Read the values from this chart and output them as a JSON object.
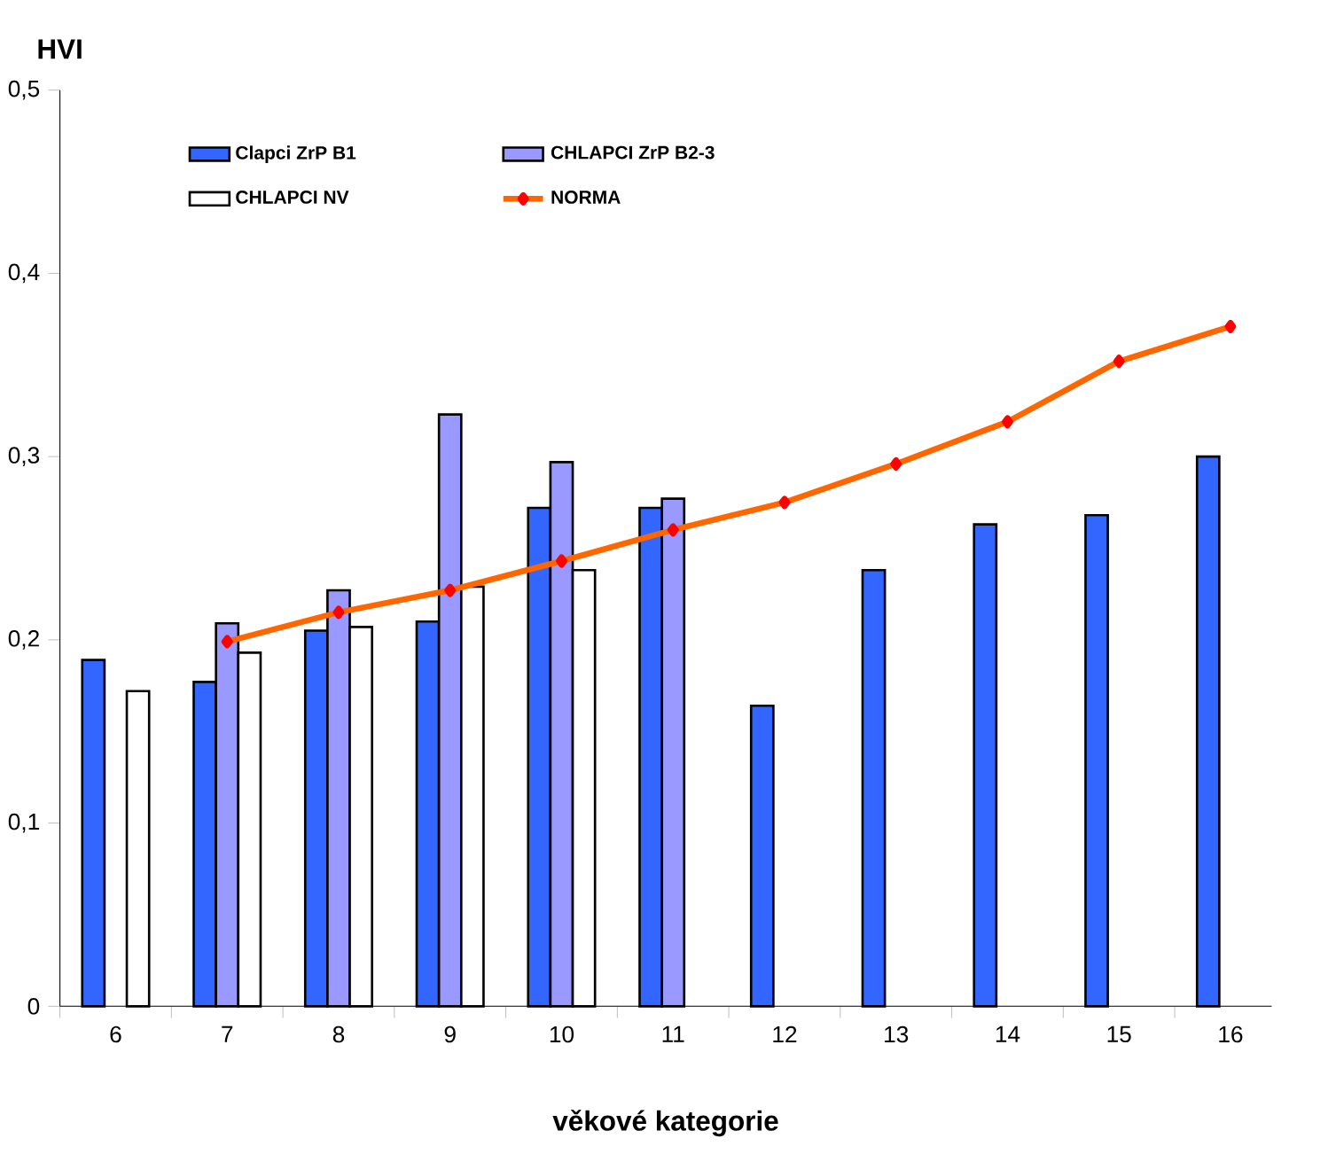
{
  "chart_data": {
    "type": "bar",
    "ylabel": "HVI",
    "xlabel": "věkové kategorie",
    "categories": [
      "6",
      "7",
      "8",
      "9",
      "10",
      "11",
      "12",
      "13",
      "14",
      "15",
      "16"
    ],
    "series": [
      {
        "name": "Clapci ZrP B1",
        "color": "#3366ff",
        "values": [
          0.189,
          0.177,
          0.205,
          0.21,
          0.272,
          0.272,
          0.164,
          0.238,
          0.263,
          0.268,
          0.3
        ]
      },
      {
        "name": "CHLAPCI ZrP B2-3",
        "color": "#9999ff",
        "values": [
          null,
          0.209,
          0.227,
          0.323,
          0.297,
          0.277,
          null,
          null,
          null,
          null,
          null
        ]
      },
      {
        "name": "CHLAPCI NV",
        "color": "#ffffff",
        "values": [
          0.172,
          0.193,
          0.207,
          0.229,
          0.238,
          null,
          null,
          null,
          null,
          null,
          null
        ]
      },
      {
        "name": "NORMA",
        "type": "line",
        "color": "#ff6600",
        "marker": "diamond",
        "values": [
          null,
          0.199,
          0.215,
          0.227,
          0.243,
          0.26,
          0.275,
          0.296,
          0.319,
          0.352,
          0.371
        ]
      }
    ],
    "ylim": [
      0,
      0.5
    ],
    "yticks": [
      0,
      {
        "value": 0.1,
        "label": "0,1"
      },
      {
        "value": 0.2,
        "label": "0,2"
      },
      {
        "value": 0.3,
        "label": "0,3"
      },
      {
        "value": 0.4,
        "label": "0,4"
      },
      {
        "value": 0.5,
        "label": "0,5"
      }
    ],
    "grid": false,
    "legend": "top"
  }
}
